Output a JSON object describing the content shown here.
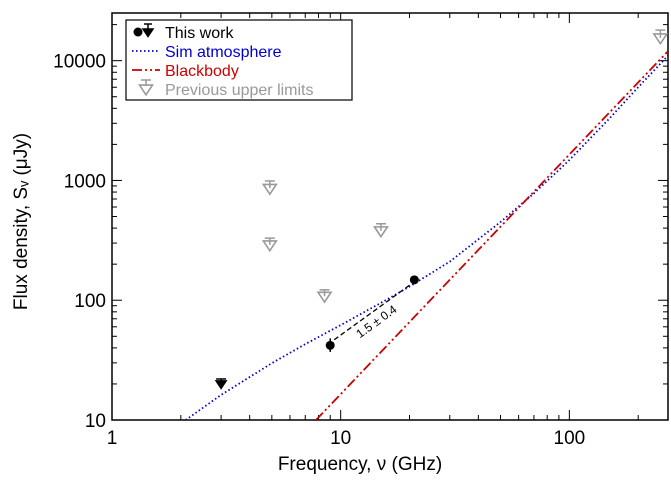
{
  "chart_data": {
    "type": "scatter",
    "xscale": "log",
    "yscale": "log",
    "xlim": [
      1,
      270
    ],
    "ylim": [
      10,
      25000
    ],
    "xlabel": "Frequency, ν (GHz)",
    "ylabel": "Flux density, Sᵥ (μJy)",
    "x_ticks": [
      {
        "value": 1,
        "label": "1"
      },
      {
        "value": 10,
        "label": "10"
      },
      {
        "value": 100,
        "label": "100"
      }
    ],
    "y_ticks": [
      {
        "value": 10,
        "label": "10"
      },
      {
        "value": 100,
        "label": "100"
      },
      {
        "value": 1000,
        "label": "1000"
      },
      {
        "value": 10000,
        "label": "10000"
      }
    ],
    "legend": {
      "position": "top-left",
      "entries": [
        {
          "label": "This work",
          "color": "#000000",
          "marker": "dot-and-triangle"
        },
        {
          "label": "Sim atmosphere",
          "color": "#0000cc",
          "linestyle": "dotted"
        },
        {
          "label": "Blackbody",
          "color": "#cc0000",
          "linestyle": "dash-dot-dot"
        },
        {
          "label": "Previous upper limits",
          "color": "#999999",
          "marker": "open-triangle"
        }
      ]
    },
    "series": [
      {
        "name": "This work",
        "color": "#000000",
        "detections": [
          {
            "x": 9.0,
            "y": 42,
            "yerr_low": 37,
            "yerr_high": 48
          },
          {
            "x": 21.0,
            "y": 148,
            "yerr_low": 138,
            "yerr_high": 158
          }
        ],
        "upper_limits": [
          {
            "x": 3.0,
            "y": 20,
            "cap": 22
          }
        ]
      },
      {
        "name": "Previous upper limits",
        "color": "#999999",
        "upper_limits": [
          {
            "x": 4.9,
            "y": 860,
            "cap": 990
          },
          {
            "x": 4.9,
            "y": 290,
            "cap": 330
          },
          {
            "x": 8.5,
            "y": 108,
            "cap": 122
          },
          {
            "x": 15.0,
            "y": 380,
            "cap": 435
          },
          {
            "x": 250.0,
            "y": 15500,
            "cap": 18000
          }
        ]
      },
      {
        "name": "Sim atmosphere",
        "color": "#0000cc",
        "x": [
          2.1,
          3,
          5,
          7,
          10,
          15,
          20,
          30,
          50,
          70,
          100,
          150,
          200,
          270
        ],
        "y": [
          10,
          16.2,
          29.8,
          43,
          62,
          95,
          130,
          210,
          450,
          780,
          1480,
          3300,
          6000,
          11000
        ]
      },
      {
        "name": "Blackbody",
        "color": "#cc0000",
        "x": [
          7.8,
          270
        ],
        "y": [
          10,
          12000
        ]
      }
    ],
    "annotations": [
      {
        "text": "1.5 ± 0.4",
        "x1": 9.0,
        "y1": 45,
        "x2": 21.0,
        "y2": 145
      }
    ]
  }
}
